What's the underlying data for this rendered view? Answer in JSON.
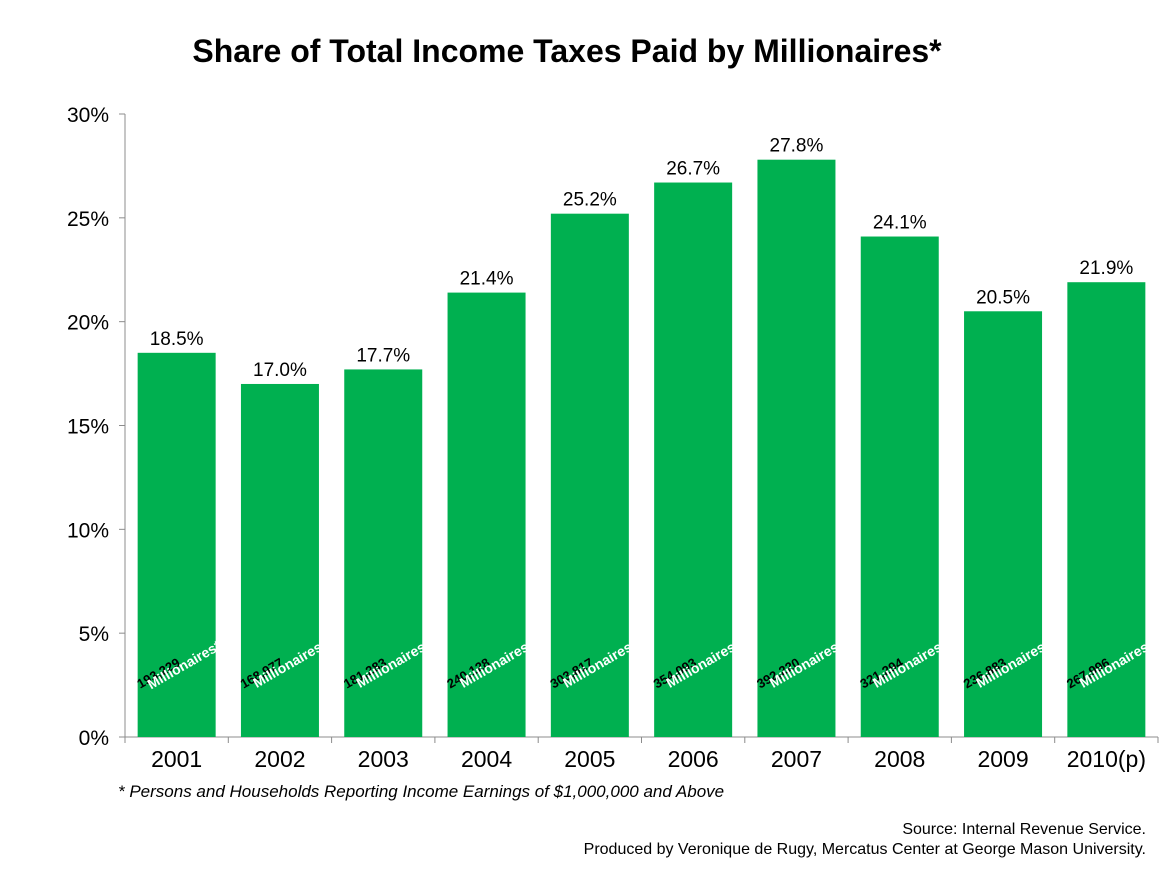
{
  "chart_data": {
    "type": "bar",
    "title": "Share of Total Income Taxes Paid by Millionaires*",
    "categories": [
      "2001",
      "2002",
      "2003",
      "2004",
      "2005",
      "2006",
      "2007",
      "2008",
      "2009",
      "2010(p)"
    ],
    "values": [
      18.5,
      17.0,
      17.7,
      21.4,
      25.2,
      26.7,
      27.8,
      24.1,
      20.5,
      21.9
    ],
    "value_labels": [
      "18.5%",
      "17.0%",
      "17.7%",
      "21.4%",
      "25.2%",
      "26.7%",
      "27.8%",
      "24.1%",
      "20.5%",
      "21.9%"
    ],
    "counts": [
      "193,229",
      "168,977",
      "181,283",
      "240,128",
      "303,817",
      "354,093",
      "392,220",
      "321,294",
      "236,883",
      "267,996"
    ],
    "count_suffixes": [
      "Millionaires*",
      "Millionaires",
      "Millionaires",
      "Millionaires",
      "Millionaires",
      "Millionaires",
      "Millionaires",
      "Millionaires",
      "Millionaires",
      "Millionaires"
    ],
    "ylim": [
      0,
      30
    ],
    "yticks": [
      0,
      5,
      10,
      15,
      20,
      25,
      30
    ],
    "ytick_labels": [
      "0%",
      "5%",
      "10%",
      "15%",
      "20%",
      "25%",
      "30%"
    ],
    "xlabel": "",
    "ylabel": "",
    "bar_color": "#00b050",
    "grid": false,
    "legend": "none"
  },
  "footnote": "* Persons and Households Reporting Income Earnings of $1,000,000 and Above",
  "source_line1": "Source: Internal Revenue Service.",
  "source_line2": "Produced by Veronique de Rugy, Mercatus Center at George Mason University."
}
